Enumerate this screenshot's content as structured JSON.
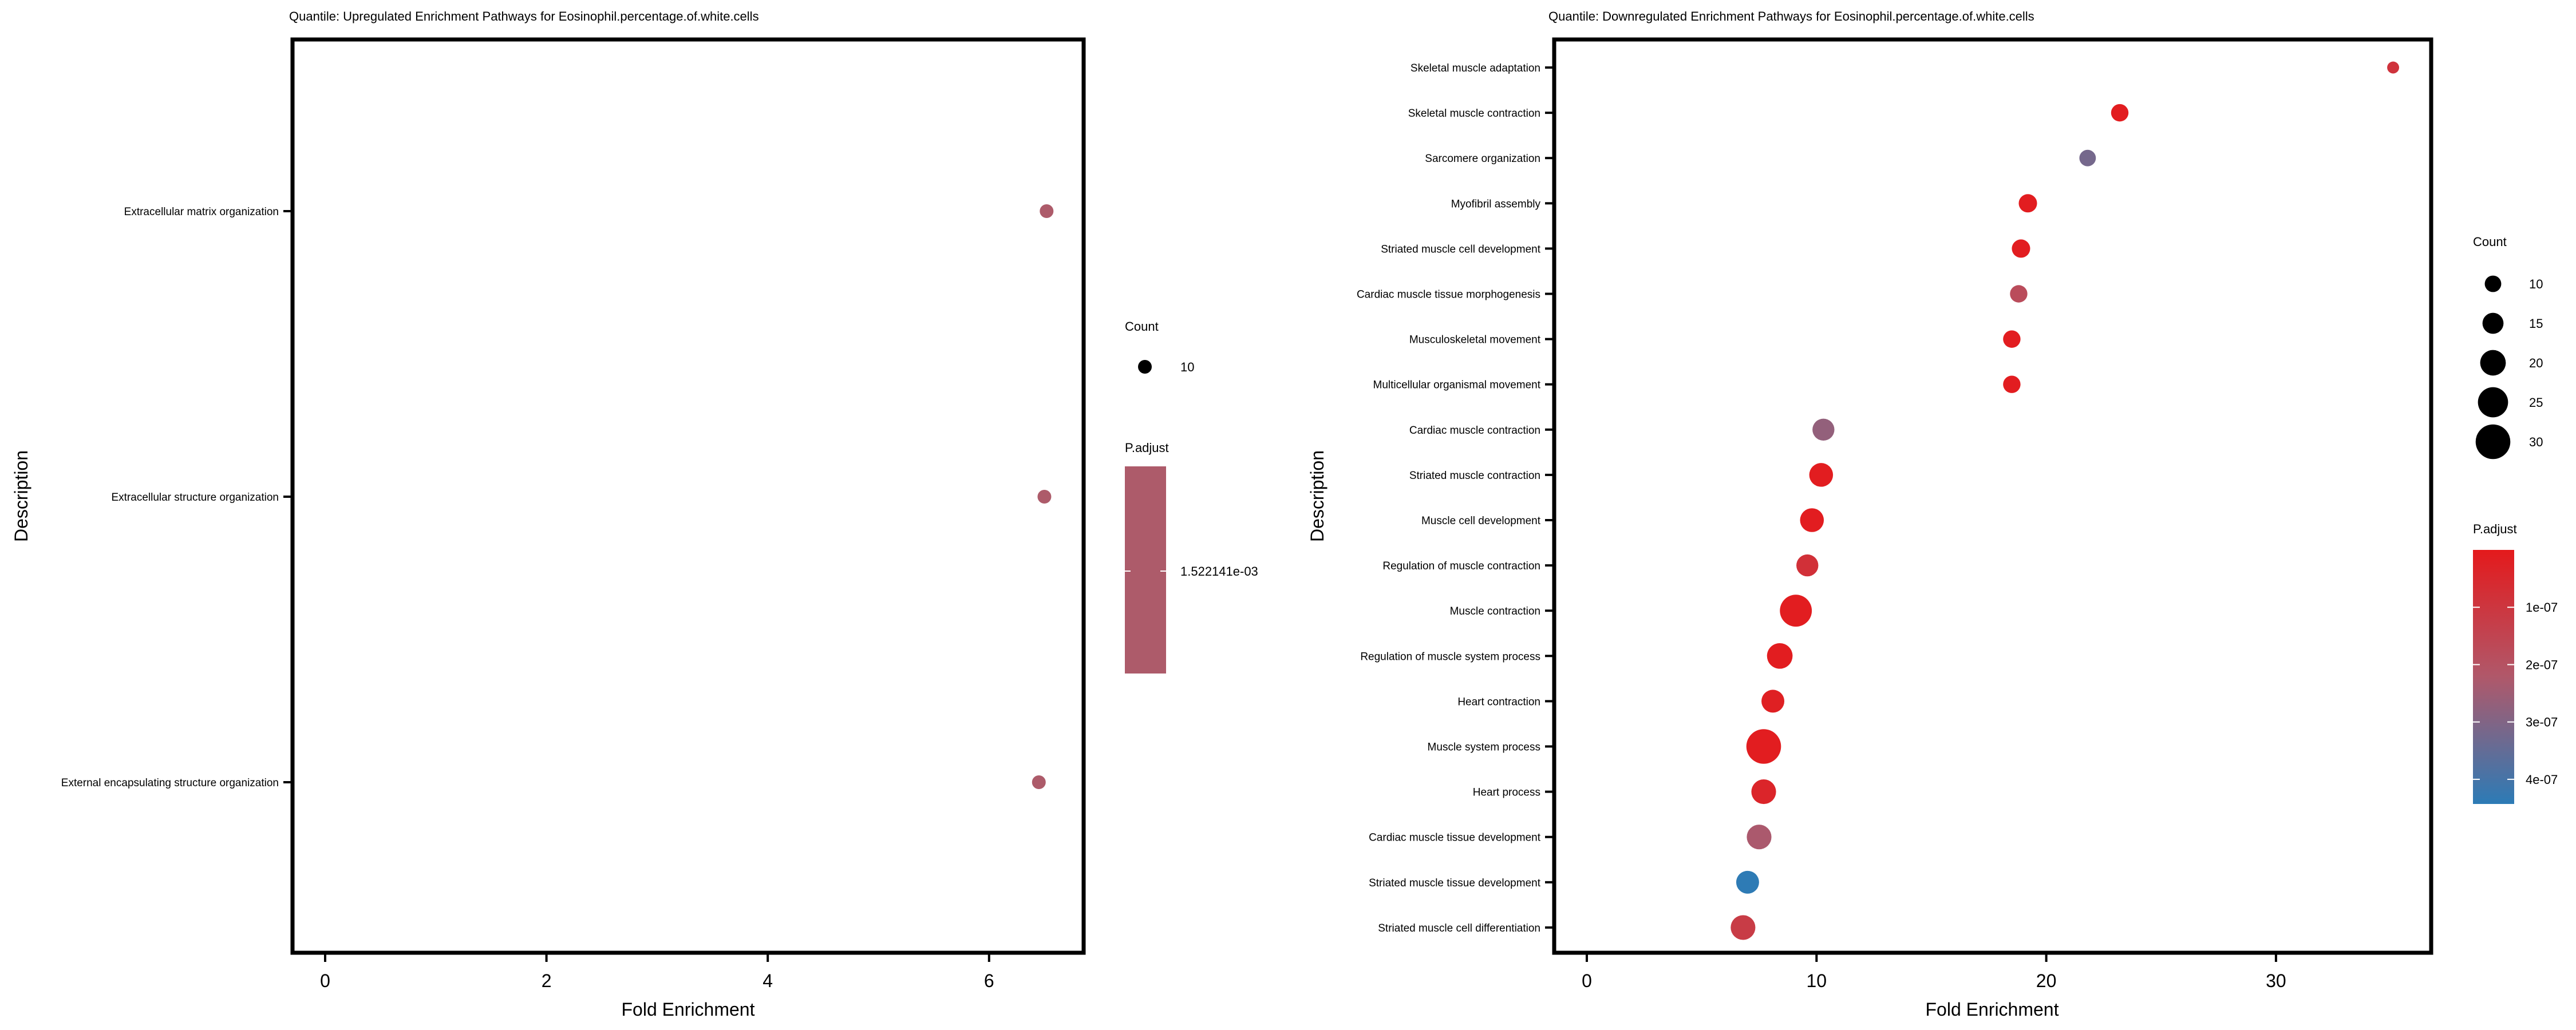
{
  "chart_data": [
    {
      "type": "scatter",
      "title": "Quantile: Upregulated Enrichment Pathways for Eosinophil.percentage.of.white.cells",
      "xlabel": "Fold Enrichment",
      "ylabel": "Description",
      "xlim": [
        -0.3,
        6.85
      ],
      "xticks": [
        0,
        2,
        4,
        6
      ],
      "categories": [
        "Extracellular matrix organization",
        "Extracellular structure organization",
        "External encapsulating structure organization"
      ],
      "x": [
        6.52,
        6.5,
        6.45
      ],
      "count": [
        10,
        10,
        10
      ],
      "p_adjust": [
        0.001522141,
        0.001522141,
        0.001522141
      ],
      "point_color": "#ad5b6a",
      "legend": {
        "count_title": "Count",
        "count_values": [
          10
        ],
        "padjust_title": "P.adjust",
        "padjust_labels": [
          "1.522141e-03"
        ],
        "placement": "right"
      }
    },
    {
      "type": "scatter",
      "title": "Quantile: Downregulated Enrichment Pathways for Eosinophil.percentage.of.white.cells",
      "xlabel": "Fold Enrichment",
      "ylabel": "Description",
      "xlim": [
        -1.4,
        37.3
      ],
      "xticks": [
        0,
        10,
        20,
        30
      ],
      "categories": [
        "Skeletal muscle adaptation",
        "Skeletal muscle contraction",
        "Sarcomere organization",
        "Myofibril assembly",
        "Striated muscle cell development",
        "Cardiac muscle tissue morphogenesis",
        "Musculoskeletal movement",
        "Multicellular organismal movement",
        "Cardiac muscle contraction",
        "Striated muscle contraction",
        "Muscle cell development",
        "Regulation of muscle contraction",
        "Muscle contraction",
        "Regulation of muscle system process",
        "Heart contraction",
        "Muscle system process",
        "Heart process",
        "Cardiac muscle tissue development",
        "Striated muscle tissue development",
        "Striated muscle cell differentiation"
      ],
      "x": [
        35.1,
        23.2,
        21.8,
        19.2,
        18.9,
        18.8,
        18.5,
        18.5,
        10.3,
        10.2,
        9.8,
        9.6,
        9.1,
        8.4,
        8.1,
        7.7,
        7.7,
        7.5,
        7.0,
        6.8
      ],
      "count": [
        5,
        11,
        10,
        12,
        12,
        11,
        11,
        11,
        16,
        18,
        18,
        16,
        27,
        20,
        17,
        30,
        19,
        19,
        17,
        19
      ],
      "p_adjust": [
        9e-08,
        1e-08,
        3.2e-07,
        1e-08,
        1e-08,
        1.8e-07,
        1e-08,
        1e-08,
        2.7e-07,
        1e-08,
        1e-08,
        8e-08,
        1e-08,
        1e-08,
        2e-08,
        1e-08,
        4e-08,
        2.3e-07,
        4.4e-07,
        1.2e-07
      ],
      "padjust_range": [
        0,
        4.43e-07
      ],
      "colors": {
        "low": "#e41a1c",
        "high": "#2c7bb6"
      },
      "legend": {
        "count_title": "Count",
        "count_values": [
          10,
          15,
          20,
          25,
          30
        ],
        "padjust_title": "P.adjust",
        "padjust_ticks": [
          1e-07,
          2e-07,
          3e-07,
          4e-07
        ],
        "padjust_labels": [
          "1e-07",
          "2e-07",
          "3e-07",
          "4e-07"
        ],
        "placement": "right"
      }
    }
  ]
}
